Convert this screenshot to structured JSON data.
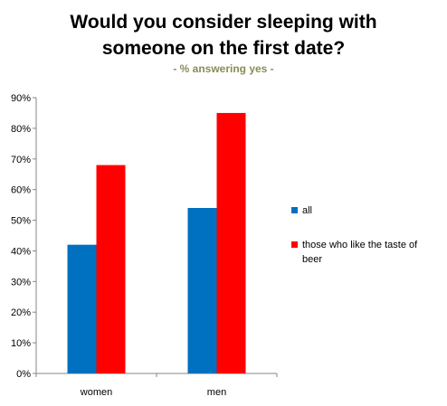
{
  "chart_data": {
    "type": "bar",
    "title_line1": "Would you consider sleeping with",
    "title_line2": "someone on the first date?",
    "subtitle": "- % answering yes -",
    "categories": [
      "women",
      "men"
    ],
    "series": [
      {
        "name": "all",
        "values": [
          42,
          54
        ],
        "color": "#0070c0"
      },
      {
        "name": "those who like the taste of beer",
        "values": [
          68,
          85
        ],
        "color": "#ff0000"
      }
    ],
    "ylim": [
      0,
      90
    ],
    "yticks": [
      "0%",
      "10%",
      "20%",
      "30%",
      "40%",
      "50%",
      "60%",
      "70%",
      "80%",
      "90%"
    ],
    "grid": false,
    "legend_position": "right"
  }
}
